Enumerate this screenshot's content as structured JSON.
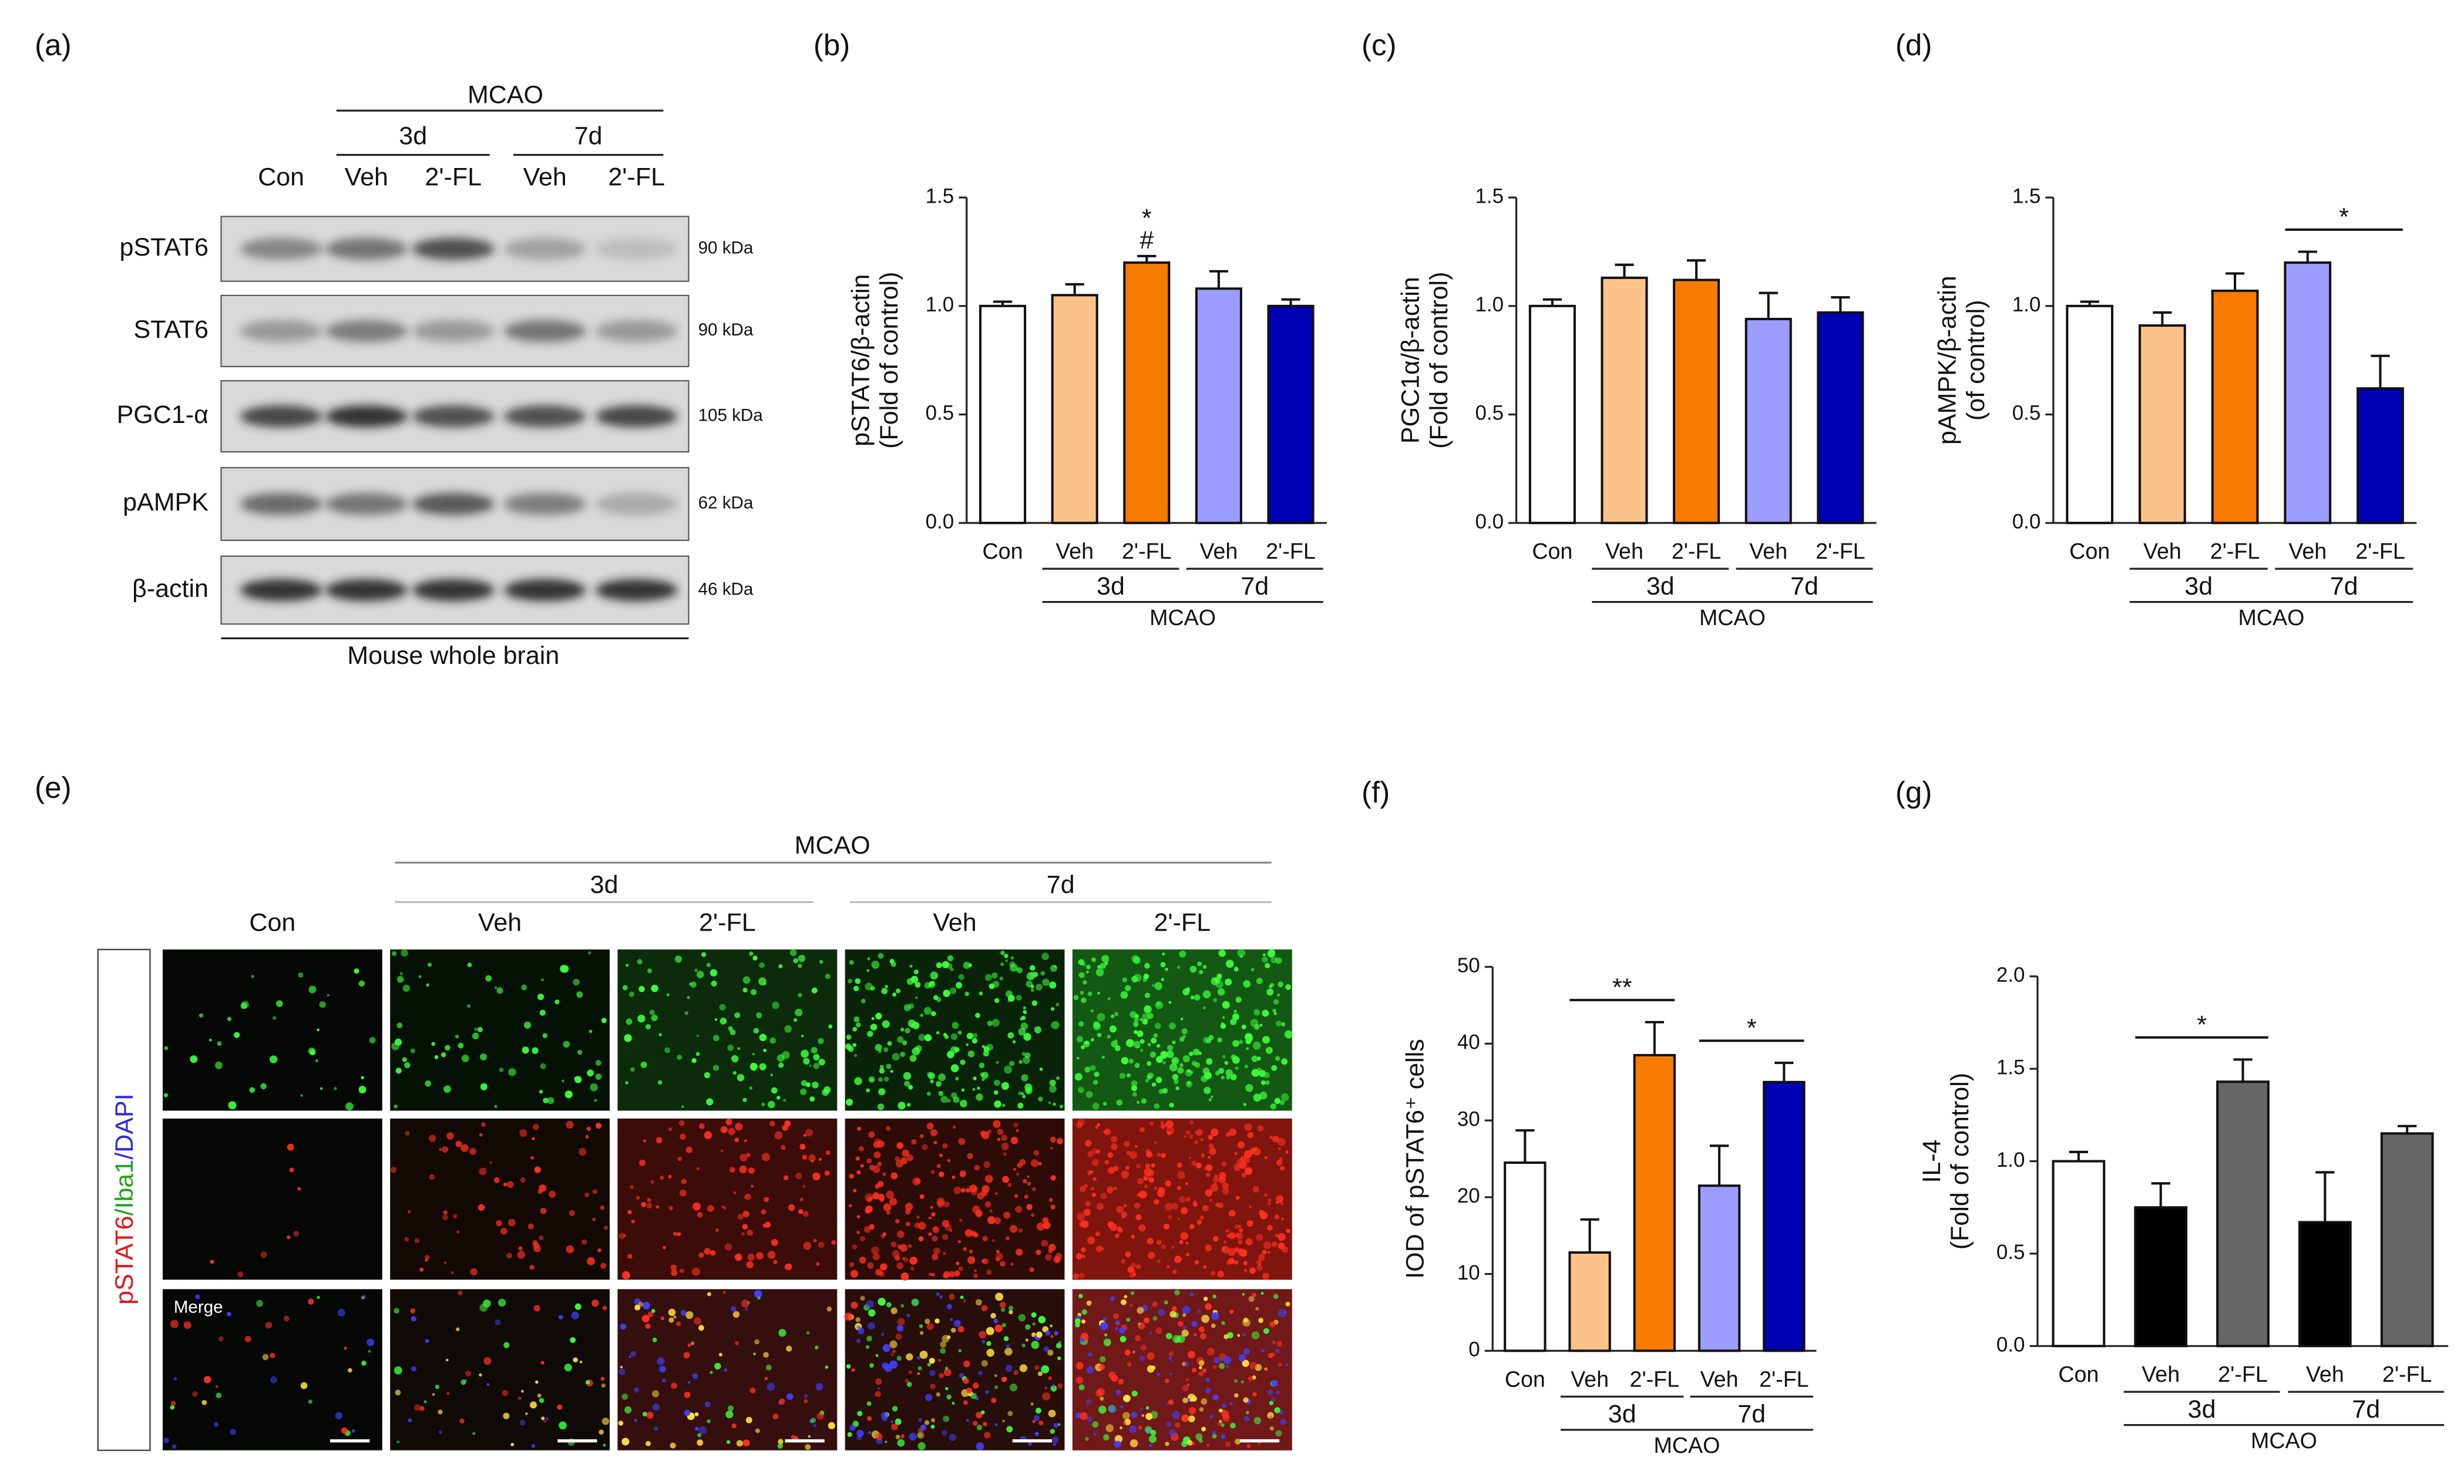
{
  "panels": {
    "a": {
      "label": "(a)",
      "group_label": "MCAO",
      "groups": [
        "3d",
        "7d"
      ],
      "lanes": [
        "Con",
        "Veh",
        "2'-FL",
        "Veh",
        "2'-FL"
      ],
      "rows": [
        {
          "name": "pSTAT6",
          "size": "90 kDa"
        },
        {
          "name": "STAT6",
          "size": "90 kDa"
        },
        {
          "name": "PGC1-α",
          "size": "105 kDa"
        },
        {
          "name": "pAMPK",
          "size": "62 kDa"
        },
        {
          "name": "β-actin",
          "size": "46 kDa"
        }
      ],
      "footer": "Mouse whole brain"
    },
    "e": {
      "label": "(e)",
      "group_label": "MCAO",
      "groups": [
        "3d",
        "7d"
      ],
      "columns": [
        "Con",
        "Veh",
        "2'-FL",
        "Veh",
        "2'-FL"
      ],
      "side_label": [
        {
          "text": "pSTAT6",
          "color": "#e8141b"
        },
        {
          "text": "/Iba1",
          "color": "#1aa51a"
        },
        {
          "text": "/DAPI",
          "color": "#2a2ae0"
        }
      ],
      "merge_label": "Merge"
    }
  },
  "chart_data": [
    {
      "type": "bar",
      "label": "(b)",
      "ylabel": [
        "pSTAT6/β-actin",
        "(Fold of control)"
      ],
      "categories": [
        "Con",
        "Veh",
        "2'-FL",
        "Veh",
        "2'-FL"
      ],
      "groups": [
        "3d",
        "7d"
      ],
      "group_label": "MCAO",
      "values": [
        1.0,
        1.05,
        1.2,
        1.08,
        1.0
      ],
      "errors": [
        0.02,
        0.05,
        0.03,
        0.08,
        0.03
      ],
      "colors": [
        "#ffffff",
        "#fbc38a",
        "#f77b00",
        "#9c9cff",
        "#0000b4"
      ],
      "ylim": [
        0,
        1.5
      ],
      "yticks": [
        {
          "value": 0,
          "label": "0.0"
        },
        {
          "value": 0.5,
          "label": "0.5"
        },
        {
          "value": 1,
          "label": "1.0"
        },
        {
          "value": 1.5,
          "label": "1.5"
        }
      ],
      "annotations": [
        {
          "text": "*",
          "bars": [
            2
          ]
        },
        {
          "text": "#",
          "bars": [
            2
          ]
        }
      ]
    },
    {
      "type": "bar",
      "label": "(c)",
      "ylabel": [
        "PGC1α/β-actin",
        "(Fold of control)"
      ],
      "categories": [
        "Con",
        "Veh",
        "2'-FL",
        "Veh",
        "2'-FL"
      ],
      "groups": [
        "3d",
        "7d"
      ],
      "group_label": "MCAO",
      "values": [
        1.0,
        1.13,
        1.12,
        0.94,
        0.97
      ],
      "errors": [
        0.03,
        0.06,
        0.09,
        0.12,
        0.07
      ],
      "colors": [
        "#ffffff",
        "#fbc38a",
        "#f77b00",
        "#9c9cff",
        "#0000b4"
      ],
      "ylim": [
        0,
        1.5
      ],
      "yticks": [
        {
          "value": 0,
          "label": "0.0"
        },
        {
          "value": 0.5,
          "label": "0.5"
        },
        {
          "value": 1,
          "label": "1.0"
        },
        {
          "value": 1.5,
          "label": "1.5"
        }
      ],
      "annotations": []
    },
    {
      "type": "bar",
      "label": "(d)",
      "ylabel": [
        "pAMPK/β-actin",
        "(of control)"
      ],
      "categories": [
        "Con",
        "Veh",
        "2'-FL",
        "Veh",
        "2'-FL"
      ],
      "groups": [
        "3d",
        "7d"
      ],
      "group_label": "MCAO",
      "values": [
        1.0,
        0.91,
        1.07,
        1.2,
        0.62
      ],
      "errors": [
        0.02,
        0.06,
        0.08,
        0.05,
        0.15
      ],
      "colors": [
        "#ffffff",
        "#fbc38a",
        "#f77b00",
        "#9c9cff",
        "#0000b4"
      ],
      "ylim": [
        0,
        1.5
      ],
      "yticks": [
        {
          "value": 0,
          "label": "0.0"
        },
        {
          "value": 0.5,
          "label": "0.5"
        },
        {
          "value": 1,
          "label": "1.0"
        },
        {
          "value": 1.5,
          "label": "1.5"
        }
      ],
      "annotations": [
        {
          "text": "*",
          "bars": [
            3,
            4
          ]
        }
      ]
    },
    {
      "type": "bar",
      "label": "(f)",
      "ylabel": [
        "IOD of pSTAT6⁺ cells"
      ],
      "categories": [
        "Con",
        "Veh",
        "2'-FL",
        "Veh",
        "2'-FL"
      ],
      "groups": [
        "3d",
        "7d"
      ],
      "group_label": "MCAO",
      "values": [
        24.5,
        12.8,
        38.5,
        21.5,
        35
      ],
      "errors": [
        4.2,
        4.3,
        4.3,
        5.2,
        2.5
      ],
      "colors": [
        "#ffffff",
        "#fbc38a",
        "#f77b00",
        "#9c9cff",
        "#0000b4"
      ],
      "ylim": [
        0,
        50
      ],
      "yticks": [
        0,
        10,
        20,
        30,
        40,
        50
      ],
      "annotations": [
        {
          "text": "**",
          "bars": [
            1,
            2
          ]
        },
        {
          "text": "*",
          "bars": [
            3,
            4
          ]
        }
      ]
    },
    {
      "type": "bar",
      "label": "(g)",
      "ylabel": [
        "IL-4",
        "(Fold of control)"
      ],
      "categories": [
        "Con",
        "Veh",
        "2'-FL",
        "Veh",
        "2'-FL"
      ],
      "groups": [
        "3d",
        "7d"
      ],
      "group_label": "MCAO",
      "values": [
        1.0,
        0.75,
        1.43,
        0.67,
        1.15
      ],
      "errors": [
        0.05,
        0.13,
        0.12,
        0.27,
        0.04
      ],
      "colors": [
        "#ffffff",
        "#000000",
        "#666666",
        "#000000",
        "#666666"
      ],
      "ylim": [
        0,
        2
      ],
      "yticks": [
        {
          "value": 0,
          "label": "0.0"
        },
        {
          "value": 0.5,
          "label": "0.5"
        },
        {
          "value": 1,
          "label": "1.0"
        },
        {
          "value": 1.5,
          "label": "1.5"
        },
        {
          "value": 2,
          "label": "2.0"
        }
      ],
      "annotations": [
        {
          "text": "*",
          "bars": [
            1,
            2
          ]
        }
      ]
    }
  ]
}
